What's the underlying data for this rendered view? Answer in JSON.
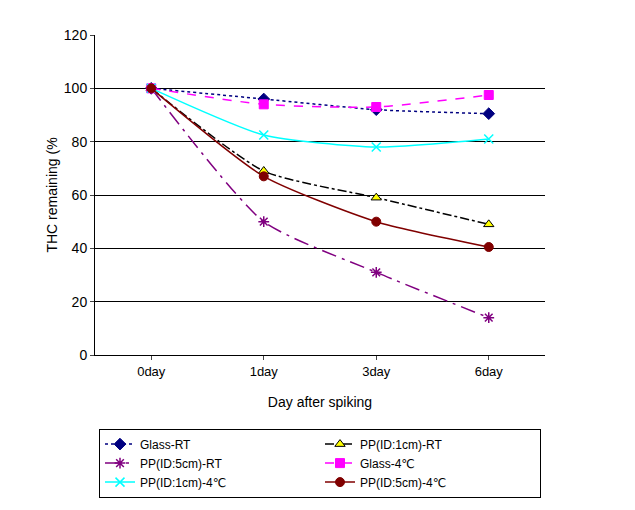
{
  "chart_data": {
    "type": "line",
    "x_label": "Day after spiking",
    "y_label": "THC remaining (%",
    "categories": [
      "0day",
      "1day",
      "3day",
      "6day"
    ],
    "ylim": [
      0,
      120
    ],
    "yticks": [
      0,
      20,
      40,
      60,
      80,
      100,
      120
    ],
    "grid": true,
    "legend": "bottom",
    "series": [
      {
        "name": "Glass-RT",
        "color": "#000080",
        "marker": "diamond",
        "line_style": "dotted",
        "values": [
          100,
          96,
          92,
          90.5
        ]
      },
      {
        "name": "PP(ID:1cm)-RT",
        "color": "#000000",
        "marker": "triangle",
        "line_style": "dashdot",
        "values": [
          100,
          69,
          59,
          49
        ]
      },
      {
        "name": "PP(ID:5cm)-RT",
        "color": "#800080",
        "marker": "asterisk",
        "line_style": "longdashdot",
        "values": [
          100,
          50,
          31,
          14
        ]
      },
      {
        "name": "Glass-4℃",
        "color": "#ff00ff",
        "marker": "square",
        "line_style": "dashed",
        "values": [
          100,
          94,
          93,
          97.5
        ]
      },
      {
        "name": "PP(ID:1cm)-4℃",
        "color": "#00ffff",
        "marker": "x",
        "line_style": "solid",
        "values": [
          100,
          82.5,
          78,
          81
        ]
      },
      {
        "name": "PP(ID:5cm)-4℃",
        "color": "#800000",
        "marker": "circle",
        "line_style": "solid",
        "values": [
          100,
          67,
          50,
          40.5
        ]
      }
    ]
  }
}
